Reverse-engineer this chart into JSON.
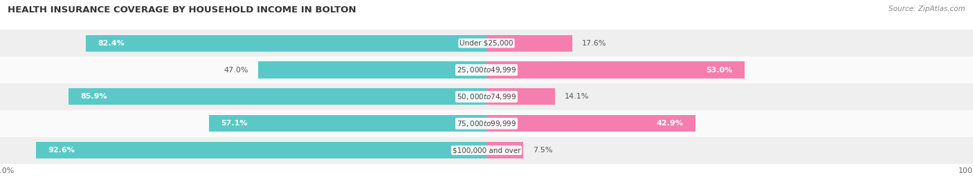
{
  "title": "HEALTH INSURANCE COVERAGE BY HOUSEHOLD INCOME IN BOLTON",
  "source": "Source: ZipAtlas.com",
  "categories": [
    "Under $25,000",
    "$25,000 to $49,999",
    "$50,000 to $74,999",
    "$75,000 to $99,999",
    "$100,000 and over"
  ],
  "with_coverage": [
    82.4,
    47.0,
    85.9,
    57.1,
    92.6
  ],
  "without_coverage": [
    17.6,
    53.0,
    14.1,
    42.9,
    7.5
  ],
  "coverage_color": "#5BC8C8",
  "no_coverage_color": "#F47FAE",
  "row_colors": [
    "#EFEFEF",
    "#FAFAFA",
    "#EFEFEF",
    "#FAFAFA",
    "#EFEFEF"
  ],
  "figsize": [
    14.06,
    2.7
  ],
  "dpi": 100
}
